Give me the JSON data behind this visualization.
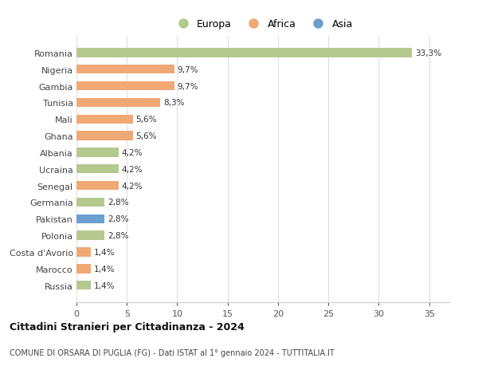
{
  "countries": [
    "Romania",
    "Nigeria",
    "Gambia",
    "Tunisia",
    "Mali",
    "Ghana",
    "Albania",
    "Ucraina",
    "Senegal",
    "Germania",
    "Pakistan",
    "Polonia",
    "Costa d'Avorio",
    "Marocco",
    "Russia"
  ],
  "values": [
    33.3,
    9.7,
    9.7,
    8.3,
    5.6,
    5.6,
    4.2,
    4.2,
    4.2,
    2.8,
    2.8,
    2.8,
    1.4,
    1.4,
    1.4
  ],
  "labels": [
    "33,3%",
    "9,7%",
    "9,7%",
    "8,3%",
    "5,6%",
    "5,6%",
    "4,2%",
    "4,2%",
    "4,2%",
    "2,8%",
    "2,8%",
    "2,8%",
    "1,4%",
    "1,4%",
    "1,4%"
  ],
  "continents": [
    "Europa",
    "Africa",
    "Africa",
    "Africa",
    "Africa",
    "Africa",
    "Europa",
    "Europa",
    "Africa",
    "Europa",
    "Asia",
    "Europa",
    "Africa",
    "Africa",
    "Europa"
  ],
  "colors": {
    "Europa": "#b5c98e",
    "Africa": "#f0a875",
    "Asia": "#6b9fcf"
  },
  "legend_labels": [
    "Europa",
    "Africa",
    "Asia"
  ],
  "title1": "Cittadini Stranieri per Cittadinanza - 2024",
  "title2": "COMUNE DI ORSARA DI PUGLIA (FG) - Dati ISTAT al 1° gennaio 2024 - TUTTITALIA.IT",
  "xlim": [
    0,
    37
  ],
  "xticks": [
    0,
    5,
    10,
    15,
    20,
    25,
    30,
    35
  ],
  "background_color": "#ffffff",
  "grid_color": "#e0e0e0",
  "bar_height": 0.55,
  "label_fontsize": 7.5,
  "ytick_fontsize": 8,
  "xtick_fontsize": 8
}
